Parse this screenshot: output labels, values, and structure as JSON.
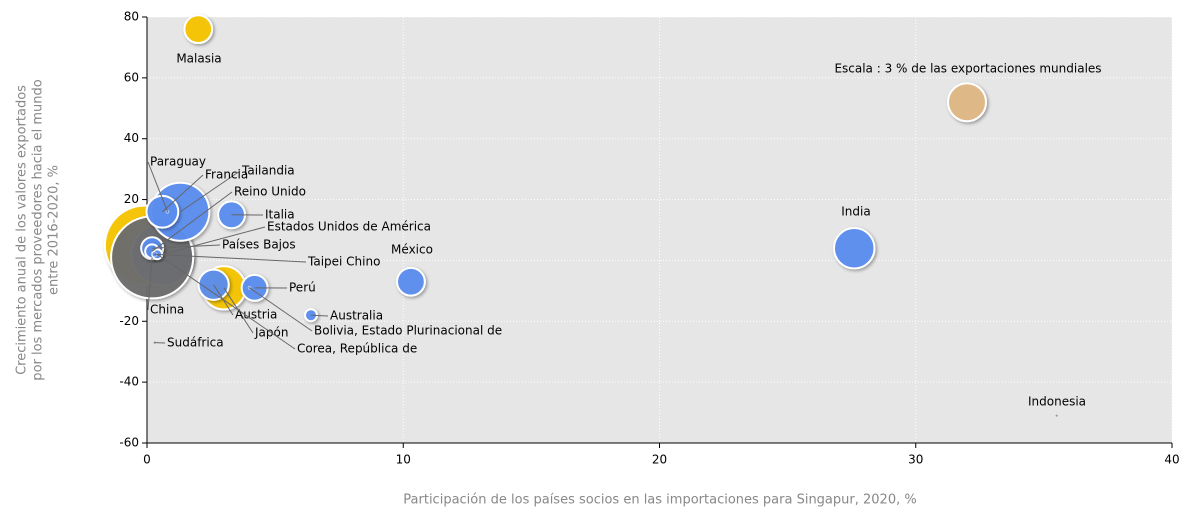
{
  "chart_data": {
    "type": "bubble",
    "x_label": "Participación de los países socios en las importaciones para Singapur, 2020, %",
    "y_label": [
      "Crecimiento anual de los valores exportados",
      "por los mercados proveedores hacia el mundo",
      "entre 2016-2020, %"
    ],
    "xlim": [
      0,
      40
    ],
    "xticks": [
      0,
      10,
      20,
      30,
      40
    ],
    "ylim": [
      -60,
      80
    ],
    "yticks": [
      -60,
      -40,
      -20,
      0,
      20,
      40,
      60,
      80
    ],
    "grid": true,
    "scale": {
      "label": "Escala : 3 % de las exportaciones mundiales",
      "size": 3,
      "color": "#deb887"
    },
    "points": [
      {
        "name": null,
        "x": -0.1,
        "y": 5,
        "size": 13,
        "color": "#f5c400"
      },
      {
        "name": "Estados Unidos de América",
        "x": 0.6,
        "y": 2,
        "size": 8,
        "color": "#5b8def"
      },
      {
        "name": "China",
        "x": 0.2,
        "y": 1,
        "size": 14,
        "color": "#6e6e6e"
      },
      {
        "name": "Tailandia",
        "x": 1.3,
        "y": 16,
        "size": 7,
        "color": "#5b8def"
      },
      {
        "name": "Japón",
        "x": 3.0,
        "y": -9,
        "size": 3.9,
        "color": "#f5c400"
      },
      {
        "name": "Francia",
        "x": 0.6,
        "y": 16,
        "size": 2.1,
        "color": "#5b8def"
      },
      {
        "name": "Malasia",
        "x": 2.0,
        "y": 76,
        "size": 1.6,
        "color": "#f5c400"
      },
      {
        "name": "India",
        "x": 27.6,
        "y": 4,
        "size": 3.4,
        "color": "#5b8def"
      },
      {
        "name": "Austria",
        "x": 2.6,
        "y": -8,
        "size": 1.9,
        "color": "#5b8def"
      },
      {
        "name": "Italia",
        "x": 3.3,
        "y": 15,
        "size": 1.5,
        "color": "#5b8def"
      },
      {
        "name": "México",
        "x": 10.3,
        "y": -7,
        "size": 1.6,
        "color": "#5b8def"
      },
      {
        "name": "Perú",
        "x": 4.2,
        "y": -9,
        "size": 1.4,
        "color": "#5b8def"
      },
      {
        "name": "Países Bajos",
        "x": 0.2,
        "y": 4,
        "size": 1.0,
        "color": "#5b8def"
      },
      {
        "name": "Reino Unido",
        "x": 0.2,
        "y": 3,
        "size": 0.4,
        "color": "#5b8def"
      },
      {
        "name": "Corea, República de",
        "x": 0.4,
        "y": 2,
        "size": 0.2,
        "color": "#5b8def"
      },
      {
        "name": "Australia",
        "x": 6.4,
        "y": -18,
        "size": 0.3,
        "color": "#5b8def"
      },
      {
        "name": "Taipei Chino",
        "x": 0.3,
        "y": 2,
        "size": 0.05,
        "color": "#5b8def"
      },
      {
        "name": "Paraguay",
        "x": 0.8,
        "y": 16,
        "size": 0.02,
        "color": "#5b8def"
      },
      {
        "name": "Bolivia, Estado Plurinacional de",
        "x": 4.0,
        "y": -9,
        "size": 0.01,
        "color": "#5b8def"
      },
      {
        "name": "Sudáfrica",
        "x": 0.3,
        "y": -27,
        "size": 0.02,
        "color": "#999999"
      },
      {
        "name": "Indonesia",
        "x": 35.5,
        "y": -51,
        "size": 0.01,
        "color": "#999999"
      }
    ]
  }
}
